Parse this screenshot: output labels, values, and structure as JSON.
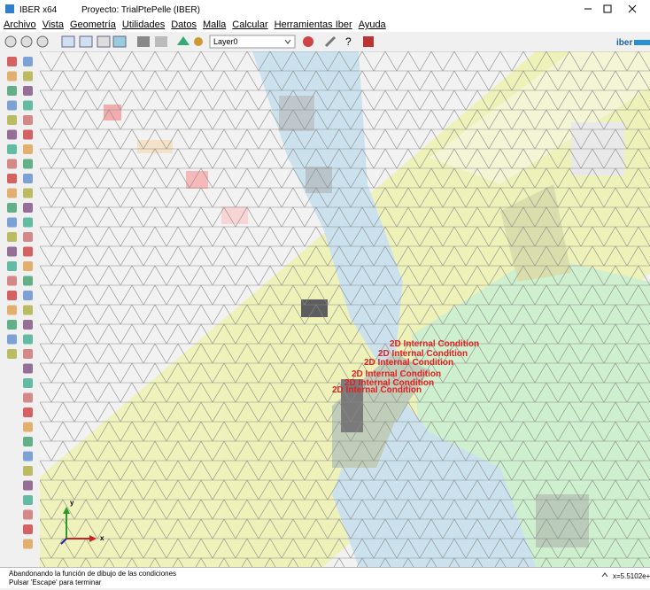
{
  "window": {
    "app": "IBER x64",
    "project": "Proyecto: TrialPtePelle (IBER)"
  },
  "menu": [
    "Archivo",
    "Vista",
    "Geometría",
    "Utilidades",
    "Datos",
    "Malla",
    "Calcular",
    "Herramientas Iber",
    "Ayuda"
  ],
  "toolbar": {
    "layer": "Layer0",
    "logo": "iber"
  },
  "canvas": {
    "labels": [
      "2D Internal Condition",
      "2D Internal Condition",
      "2D Internal Condition",
      "2D Internal Condition",
      "2D Internal Condition",
      "2D Internal Condition"
    ],
    "axes": {
      "x": "x",
      "y": "y"
    }
  },
  "status": {
    "messages": [
      "Abandonando la función de dibujo de las condiciones",
      "Pulsar 'Escape' para terminar"
    ],
    "coordinates": "x=5.5102e+0"
  }
}
